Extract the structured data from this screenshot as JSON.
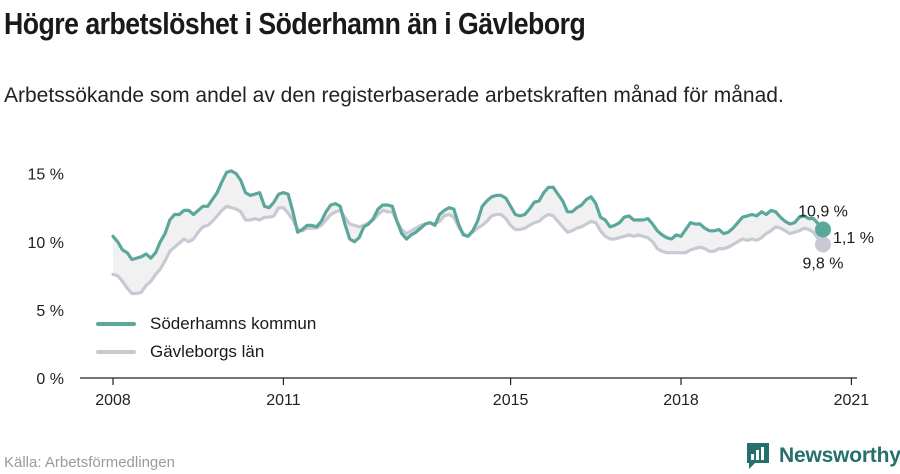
{
  "header": {
    "title": "Högre arbetslöshet i Söderhamn än i Gävleborg",
    "subtitle": "Arbetssökande som andel av den registerbaserade arbetskraften månad för månad."
  },
  "footer": {
    "source": "Källa: Arbetsförmedlingen",
    "brand": "Newsworthy"
  },
  "colors": {
    "soderhamn": "#5ba79c",
    "gavleborg": "#c9c9d3",
    "band": "#f1f1f1",
    "axis": "#222222",
    "grid_text": "#222222",
    "brand": "#25706a"
  },
  "chart_data": {
    "type": "line",
    "x_start": "2008-01",
    "x_interval": "month",
    "xticks": [
      "2008",
      "2011",
      "2015",
      "2018",
      "2021"
    ],
    "yticks": [
      "0 %",
      "5 %",
      "10 %",
      "15 %"
    ],
    "ylim": [
      0,
      16
    ],
    "legend": "bottom-left",
    "series": [
      {
        "name": "Söderhamns kommun",
        "color_key": "soderhamn",
        "values": [
          10.4,
          10.0,
          9.4,
          9.2,
          8.7,
          8.8,
          8.9,
          9.1,
          8.8,
          9.2,
          10.0,
          10.6,
          11.6,
          12.0,
          12.0,
          12.3,
          12.3,
          12.0,
          12.3,
          12.6,
          12.6,
          13.1,
          13.6,
          14.4,
          15.1,
          15.2,
          15.0,
          14.5,
          13.6,
          13.4,
          13.5,
          13.6,
          12.6,
          12.5,
          12.9,
          13.5,
          13.6,
          13.5,
          12.2,
          10.7,
          10.9,
          11.2,
          11.2,
          11.1,
          11.5,
          12.2,
          12.7,
          12.8,
          12.6,
          11.3,
          10.2,
          10.0,
          10.3,
          11.1,
          11.3,
          11.7,
          12.4,
          12.7,
          12.7,
          12.6,
          11.5,
          10.6,
          10.2,
          10.5,
          10.7,
          11.0,
          11.3,
          11.4,
          11.2,
          12.0,
          12.3,
          12.5,
          12.4,
          11.3,
          10.5,
          10.4,
          10.8,
          11.5,
          12.6,
          13.0,
          13.3,
          13.4,
          13.4,
          13.2,
          12.6,
          12.0,
          11.9,
          12.0,
          12.4,
          12.9,
          13.0,
          13.6,
          14.0,
          14.0,
          13.5,
          13.0,
          12.2,
          12.2,
          12.5,
          12.7,
          13.1,
          13.3,
          12.8,
          11.8,
          11.6,
          11.1,
          11.2,
          11.4,
          11.8,
          11.9,
          11.6,
          11.6,
          11.6,
          11.7,
          11.3,
          10.8,
          10.5,
          10.3,
          10.2,
          10.5,
          10.4,
          10.9,
          11.4,
          11.3,
          11.3,
          11.0,
          10.8,
          10.8,
          10.9,
          10.6,
          10.7,
          11.0,
          11.4,
          11.8,
          11.9,
          12.0,
          11.9,
          12.2,
          12.0,
          12.3,
          12.2,
          11.8,
          11.5,
          11.3,
          11.4,
          11.8,
          11.9,
          11.7,
          11.7,
          11.3,
          10.9
        ]
      },
      {
        "name": "Gävleborgs län",
        "color_key": "gavleborg",
        "values": [
          7.6,
          7.5,
          7.1,
          6.6,
          6.2,
          6.2,
          6.3,
          6.8,
          7.1,
          7.6,
          8.0,
          8.6,
          9.3,
          9.6,
          9.9,
          10.2,
          10.0,
          10.2,
          10.7,
          11.1,
          11.2,
          11.5,
          11.9,
          12.3,
          12.6,
          12.5,
          12.4,
          12.2,
          11.6,
          11.6,
          11.7,
          11.6,
          11.8,
          11.8,
          11.9,
          12.5,
          12.5,
          12.1,
          11.6,
          10.9,
          10.8,
          11.0,
          11.0,
          11.0,
          11.2,
          11.6,
          12.0,
          12.2,
          12.3,
          11.8,
          11.3,
          11.2,
          11.1,
          11.2,
          11.4,
          11.6,
          12.0,
          12.3,
          12.2,
          12.2,
          11.5,
          10.9,
          10.6,
          10.8,
          11.0,
          11.2,
          11.3,
          11.4,
          11.3,
          11.5,
          11.9,
          12.0,
          11.8,
          11.1,
          10.6,
          10.4,
          10.7,
          11.0,
          11.2,
          11.5,
          11.9,
          12.0,
          12.0,
          11.7,
          11.2,
          10.9,
          10.9,
          11.0,
          11.2,
          11.4,
          11.5,
          11.8,
          12.0,
          11.9,
          11.5,
          11.1,
          10.7,
          10.8,
          11.0,
          11.1,
          11.3,
          11.5,
          11.4,
          10.8,
          10.4,
          10.2,
          10.2,
          10.3,
          10.4,
          10.5,
          10.4,
          10.5,
          10.4,
          10.3,
          10.0,
          9.5,
          9.3,
          9.2,
          9.2,
          9.2,
          9.2,
          9.2,
          9.4,
          9.5,
          9.6,
          9.5,
          9.3,
          9.3,
          9.5,
          9.5,
          9.6,
          9.8,
          10.0,
          10.2,
          10.1,
          10.2,
          10.1,
          10.3,
          10.6,
          10.8,
          11.1,
          11.0,
          10.8,
          10.6,
          10.7,
          10.8,
          11.0,
          10.9,
          10.7,
          10.2,
          9.8
        ]
      }
    ],
    "end_labels": {
      "soderhamn": "10,9 %",
      "gavleborg": "9,8 %",
      "difference": "1,1 %"
    }
  }
}
